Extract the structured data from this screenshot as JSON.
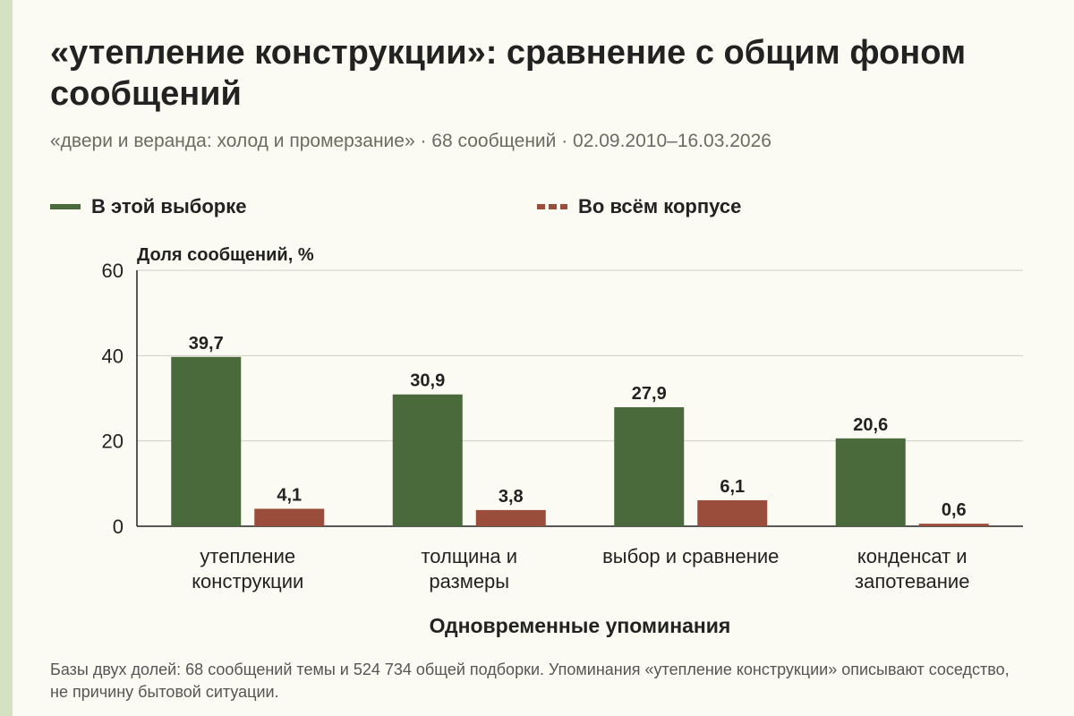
{
  "title": "«утепление конструкции»: сравнение с общим фоном сообщений",
  "subtitle": "«двери и веранда: холод и промерзание» · 68 сообщений · 02.09.2010–16.03.2026",
  "footnote": "Базы двух долей: 68 сообщений темы и 524 734 общей подборки. Упоминания «утепление конструкции» описывают соседство, не причину бытовой ситуации.",
  "colors": {
    "sample": "#4a6a3b",
    "corpus": "#9b4d3b"
  },
  "chart_data": {
    "type": "bar",
    "ylabel": "Доля сообщений, %",
    "xlabel": "Одновременные упоминания",
    "ylim": [
      0,
      60
    ],
    "yticks": [
      0,
      20,
      40,
      60
    ],
    "grid": true,
    "legend_position": "top",
    "categories": [
      [
        "утепление",
        "конструкции"
      ],
      [
        "толщина и",
        "размеры"
      ],
      [
        "выбор и сравнение"
      ],
      [
        "конденсат и",
        "запотевание"
      ]
    ],
    "series": [
      {
        "name": "В этой выборке",
        "values": [
          39.7,
          30.9,
          27.9,
          20.6
        ],
        "labels": [
          "39,7",
          "30,9",
          "27,9",
          "20,6"
        ]
      },
      {
        "name": "Во всём корпусе",
        "values": [
          4.1,
          3.8,
          6.1,
          0.6
        ],
        "labels": [
          "4,1",
          "3,8",
          "6,1",
          "0,6"
        ]
      }
    ]
  }
}
